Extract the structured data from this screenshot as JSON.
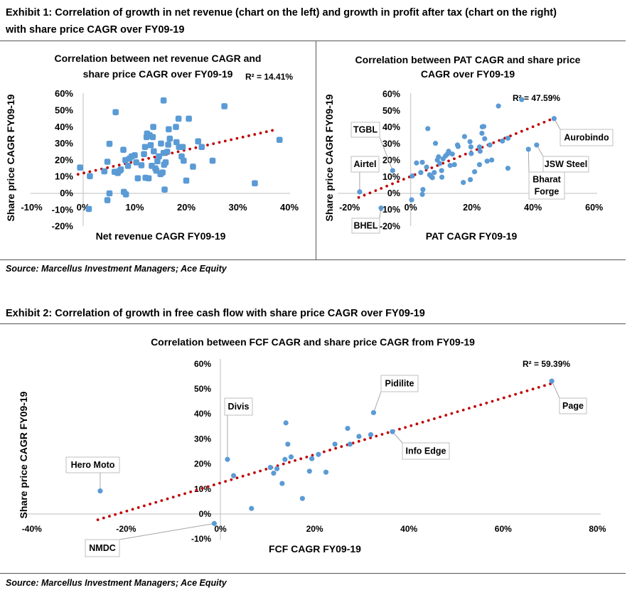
{
  "exhibit1": {
    "title_line1": "Exhibit 1: Correlation of growth in net revenue (chart on the left) and growth in profit after tax (chart on the right)",
    "title_line2": "with share price CAGR over FY09-19",
    "source": "Source: Marcellus Investment Managers; Ace Equity"
  },
  "exhibit2": {
    "title": "Exhibit 2: Correlation of growth in free cash flow with share price CAGR over FY09-19",
    "source": "Source: Marcellus Investment Managers; Ace Equity"
  },
  "colors": {
    "points": "#5B9BD5",
    "trendline": "#C00000",
    "axis": "#BFBFBF"
  },
  "chart_data": [
    {
      "id": "revenue",
      "type": "scatter",
      "title_lines": [
        "Correlation between net revenue CAGR and",
        "share price CAGR over FY09-19"
      ],
      "xlabel": "Net revenue CAGR FY09-19",
      "ylabel": "Share price CAGR FY09-19",
      "annotation": "R² = 14.41%",
      "xlim": [
        -10,
        40
      ],
      "ylim": [
        -20,
        60
      ],
      "xticks": [
        "-10%",
        "0%",
        "10%",
        "20%",
        "30%",
        "40%"
      ],
      "yticks": [
        "-20%",
        "-10%",
        "0%",
        "10%",
        "20%",
        "30%",
        "40%",
        "50%",
        "60%"
      ],
      "grid": false,
      "trendline": {
        "type": "linear dotted",
        "from": [
          -1,
          11.5
        ],
        "to": [
          36.7,
          38
        ]
      },
      "points": [
        [
          -0.6,
          15.6
        ],
        [
          1.3,
          10.4
        ],
        [
          1.1,
          -9.4
        ],
        [
          4.1,
          13.3
        ],
        [
          4.7,
          19.1
        ],
        [
          5.1,
          29.9
        ],
        [
          5.1,
          0
        ],
        [
          4.7,
          -4.1
        ],
        [
          6.3,
          49
        ],
        [
          6.1,
          13
        ],
        [
          6.7,
          12.3
        ],
        [
          7.1,
          13.7
        ],
        [
          7.3,
          14.4
        ],
        [
          7.8,
          26.3
        ],
        [
          7.9,
          0.9
        ],
        [
          8.3,
          -0.6
        ],
        [
          8.2,
          20.1
        ],
        [
          8.7,
          16.6
        ],
        [
          9.0,
          21
        ],
        [
          9.4,
          22.3
        ],
        [
          10,
          23
        ],
        [
          10.3,
          18.7
        ],
        [
          10.6,
          9.1
        ],
        [
          11.3,
          17
        ],
        [
          11.8,
          23.7
        ],
        [
          12,
          28
        ],
        [
          12.1,
          9.4
        ],
        [
          12.4,
          36.1
        ],
        [
          12.3,
          34
        ],
        [
          12.7,
          9.1
        ],
        [
          12.9,
          35.1
        ],
        [
          13.1,
          29.1
        ],
        [
          13.3,
          16.6
        ],
        [
          13.5,
          34
        ],
        [
          13.6,
          40.1
        ],
        [
          13.7,
          25.4
        ],
        [
          14,
          15.1
        ],
        [
          14.2,
          13.7
        ],
        [
          14.4,
          19.4
        ],
        [
          14.7,
          22.3
        ],
        [
          15,
          11.6
        ],
        [
          15.1,
          30.1
        ],
        [
          15.4,
          12.6
        ],
        [
          15.6,
          56.1
        ],
        [
          15.6,
          24.4
        ],
        [
          15.8,
          2.3
        ],
        [
          15.7,
          17.3
        ],
        [
          16,
          18.7
        ],
        [
          16.3,
          25.1
        ],
        [
          16.5,
          29.4
        ],
        [
          16.6,
          38.7
        ],
        [
          16.8,
          33
        ],
        [
          18,
          40.1
        ],
        [
          18.1,
          30.9
        ],
        [
          18.5,
          45.1
        ],
        [
          18.6,
          28
        ],
        [
          19.1,
          22.3
        ],
        [
          19.3,
          28
        ],
        [
          19.5,
          19.7
        ],
        [
          20,
          7.7
        ],
        [
          20.5,
          45.1
        ],
        [
          21.3,
          16.1
        ],
        [
          22.3,
          31.4
        ],
        [
          23,
          28
        ],
        [
          25.1,
          19.7
        ],
        [
          27.4,
          52.6
        ],
        [
          33.3,
          6.1
        ],
        [
          38.1,
          32.3
        ]
      ],
      "labels": []
    },
    {
      "id": "pat",
      "type": "scatter",
      "title_lines": [
        "Correlation between PAT CAGR and share price",
        "CAGR over FY09-19"
      ],
      "xlabel": "PAT CAGR FY09-19",
      "ylabel": "Share price CAGR FY09-19",
      "annotation": "R² = 47.59%",
      "xlim": [
        -20,
        60
      ],
      "ylim": [
        -20,
        60
      ],
      "xticks": [
        "-20%",
        "0%",
        "20%",
        "40%",
        "60%"
      ],
      "yticks": [
        "-20%",
        "-10%",
        "0%",
        "10%",
        "20%",
        "30%",
        "40%",
        "50%",
        "60%"
      ],
      "grid": false,
      "trendline": {
        "type": "linear dotted",
        "from": [
          -17,
          -2.5
        ],
        "to": [
          45.5,
          44.5
        ]
      },
      "points": [
        [
          -16.7,
          0.9
        ],
        [
          -5.9,
          13.8
        ],
        [
          -9.7,
          -8.9
        ],
        [
          0.3,
          -3.9
        ],
        [
          0.5,
          10.5
        ],
        [
          1.9,
          18.4
        ],
        [
          3.3,
          12.6
        ],
        [
          3.8,
          18.8
        ],
        [
          4,
          2.3
        ],
        [
          3.8,
          -0.6
        ],
        [
          5.2,
          15.9
        ],
        [
          5.6,
          39.2
        ],
        [
          6.2,
          11.2
        ],
        [
          6.7,
          10.2
        ],
        [
          7.1,
          9.5
        ],
        [
          7.7,
          12.6
        ],
        [
          8.1,
          30.3
        ],
        [
          8.7,
          20.2
        ],
        [
          9.1,
          22.1
        ],
        [
          9.5,
          18.1
        ],
        [
          10.1,
          13.8
        ],
        [
          10.2,
          9.8
        ],
        [
          10.6,
          20.9
        ],
        [
          11.4,
          22.7
        ],
        [
          12,
          23.8
        ],
        [
          12.4,
          25.5
        ],
        [
          12.9,
          16.9
        ],
        [
          13.6,
          23.8
        ],
        [
          14.3,
          17.4
        ],
        [
          15.3,
          29.3
        ],
        [
          15.5,
          28.4
        ],
        [
          17.2,
          6.6
        ],
        [
          17.6,
          34.4
        ],
        [
          19.4,
          31.3
        ],
        [
          19.5,
          8.3
        ],
        [
          19.7,
          28.1
        ],
        [
          19.8,
          24.1
        ],
        [
          20.9,
          13.1
        ],
        [
          22.5,
          28.1
        ],
        [
          22.5,
          17.4
        ],
        [
          22.7,
          25.5
        ],
        [
          23.3,
          36.4
        ],
        [
          23.4,
          40.3
        ],
        [
          23.9,
          40.5
        ],
        [
          24.2,
          33.1
        ],
        [
          25,
          19.5
        ],
        [
          25.9,
          29.3
        ],
        [
          26.5,
          20.2
        ],
        [
          28.7,
          52.9
        ],
        [
          30,
          31.7
        ],
        [
          31.8,
          33.4
        ],
        [
          31.8,
          15.2
        ],
        [
          36.3,
          56.8
        ],
        [
          38.5,
          26.7
        ],
        [
          41.2,
          29.3
        ],
        [
          46.9,
          45.3
        ]
      ],
      "labels": [
        {
          "text": [
            "Airtel"
          ],
          "point": [
            -16.7,
            0.9
          ]
        },
        {
          "text": [
            "TGBL"
          ],
          "point": [
            -5.9,
            13.8
          ]
        },
        {
          "text": [
            "BHEL"
          ],
          "point": [
            -9.7,
            -8.9
          ]
        },
        {
          "text": [
            "Aurobindo"
          ],
          "point": [
            46.9,
            45.3
          ]
        },
        {
          "text": [
            "JSW Steel"
          ],
          "point": [
            41.2,
            29.3
          ]
        },
        {
          "text": [
            "Bharat",
            "Forge"
          ],
          "point": [
            38.5,
            26.7
          ]
        }
      ]
    },
    {
      "id": "fcf",
      "type": "scatter",
      "title_lines": [
        "Correlation between FCF CAGR and share price CAGR from FY09-19"
      ],
      "xlabel": "FCF CAGR FY09-19",
      "ylabel": "Share price CAGR FY09-19",
      "annotation": "R² = 59.39%",
      "xlim": [
        -40,
        80
      ],
      "ylim": [
        -10,
        60
      ],
      "xticks": [
        "-40%",
        "-20%",
        "0%",
        "20%",
        "40%",
        "60%",
        "80%"
      ],
      "yticks": [
        "-10%",
        "0%",
        "10%",
        "20%",
        "30%",
        "40%",
        "50%",
        "60%"
      ],
      "grid": false,
      "trendline": {
        "type": "linear dotted",
        "from": [
          -26,
          -2.3
        ],
        "to": [
          70,
          52
        ]
      },
      "points": [
        [
          -25.5,
          9.2
        ],
        [
          -1.3,
          -3.8
        ],
        [
          1.5,
          21.8
        ],
        [
          2.8,
          15.3
        ],
        [
          6.6,
          2.2
        ],
        [
          10.6,
          18.6
        ],
        [
          11.3,
          16.3
        ],
        [
          12,
          18.1
        ],
        [
          13.1,
          12.2
        ],
        [
          13.7,
          21.8
        ],
        [
          13.9,
          36.4
        ],
        [
          14.3,
          27.9
        ],
        [
          15,
          22.8
        ],
        [
          17.4,
          6.2
        ],
        [
          18.9,
          17.1
        ],
        [
          19.4,
          22.1
        ],
        [
          20.8,
          23.8
        ],
        [
          22.4,
          16.7
        ],
        [
          24.3,
          27.9
        ],
        [
          27,
          34.2
        ],
        [
          27.5,
          27.9
        ],
        [
          29.4,
          31
        ],
        [
          31.9,
          31.7
        ],
        [
          32.5,
          40.5
        ],
        [
          36.5,
          32.9
        ],
        [
          70.3,
          53.1
        ]
      ],
      "labels": [
        {
          "text": [
            "Hero Moto"
          ],
          "point": [
            -25.5,
            9.2
          ]
        },
        {
          "text": [
            "NMDC"
          ],
          "point": [
            -1.3,
            -3.8
          ]
        },
        {
          "text": [
            "Divis"
          ],
          "point": [
            1.5,
            21.8
          ]
        },
        {
          "text": [
            "Pidilite"
          ],
          "point": [
            32.5,
            40.5
          ]
        },
        {
          "text": [
            "Info Edge"
          ],
          "point": [
            36.5,
            32.9
          ]
        },
        {
          "text": [
            "Page"
          ],
          "point": [
            70.3,
            53.1
          ]
        }
      ]
    }
  ]
}
